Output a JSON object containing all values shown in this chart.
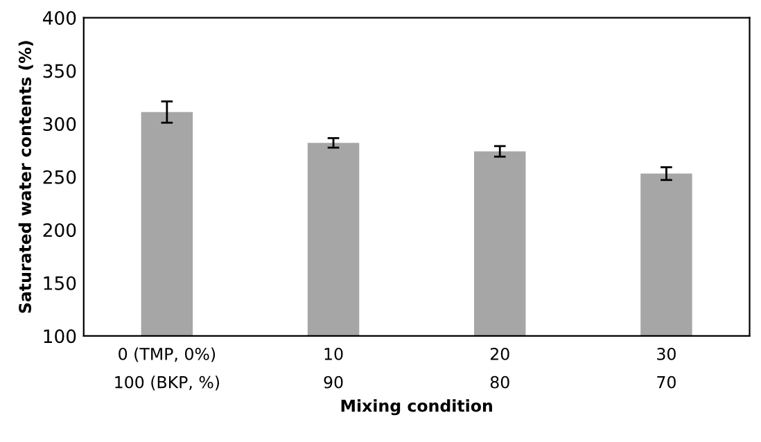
{
  "chart_data": {
    "type": "bar",
    "xlabel": "Mixing condition",
    "ylabel": "Saturated water contents (%)",
    "categories": [
      "0 (TMP, 0%)\n100 (BKP, %)",
      "10\n90",
      "20\n80",
      "30\n70"
    ],
    "values": [
      311,
      282,
      274,
      253
    ],
    "errors": [
      10,
      4.5,
      5,
      6
    ],
    "color": "#a6a6a6",
    "ylim": [
      100,
      400
    ],
    "yticks": [
      100,
      150,
      200,
      250,
      300,
      350,
      400
    ],
    "grid": false,
    "legend": false
  }
}
